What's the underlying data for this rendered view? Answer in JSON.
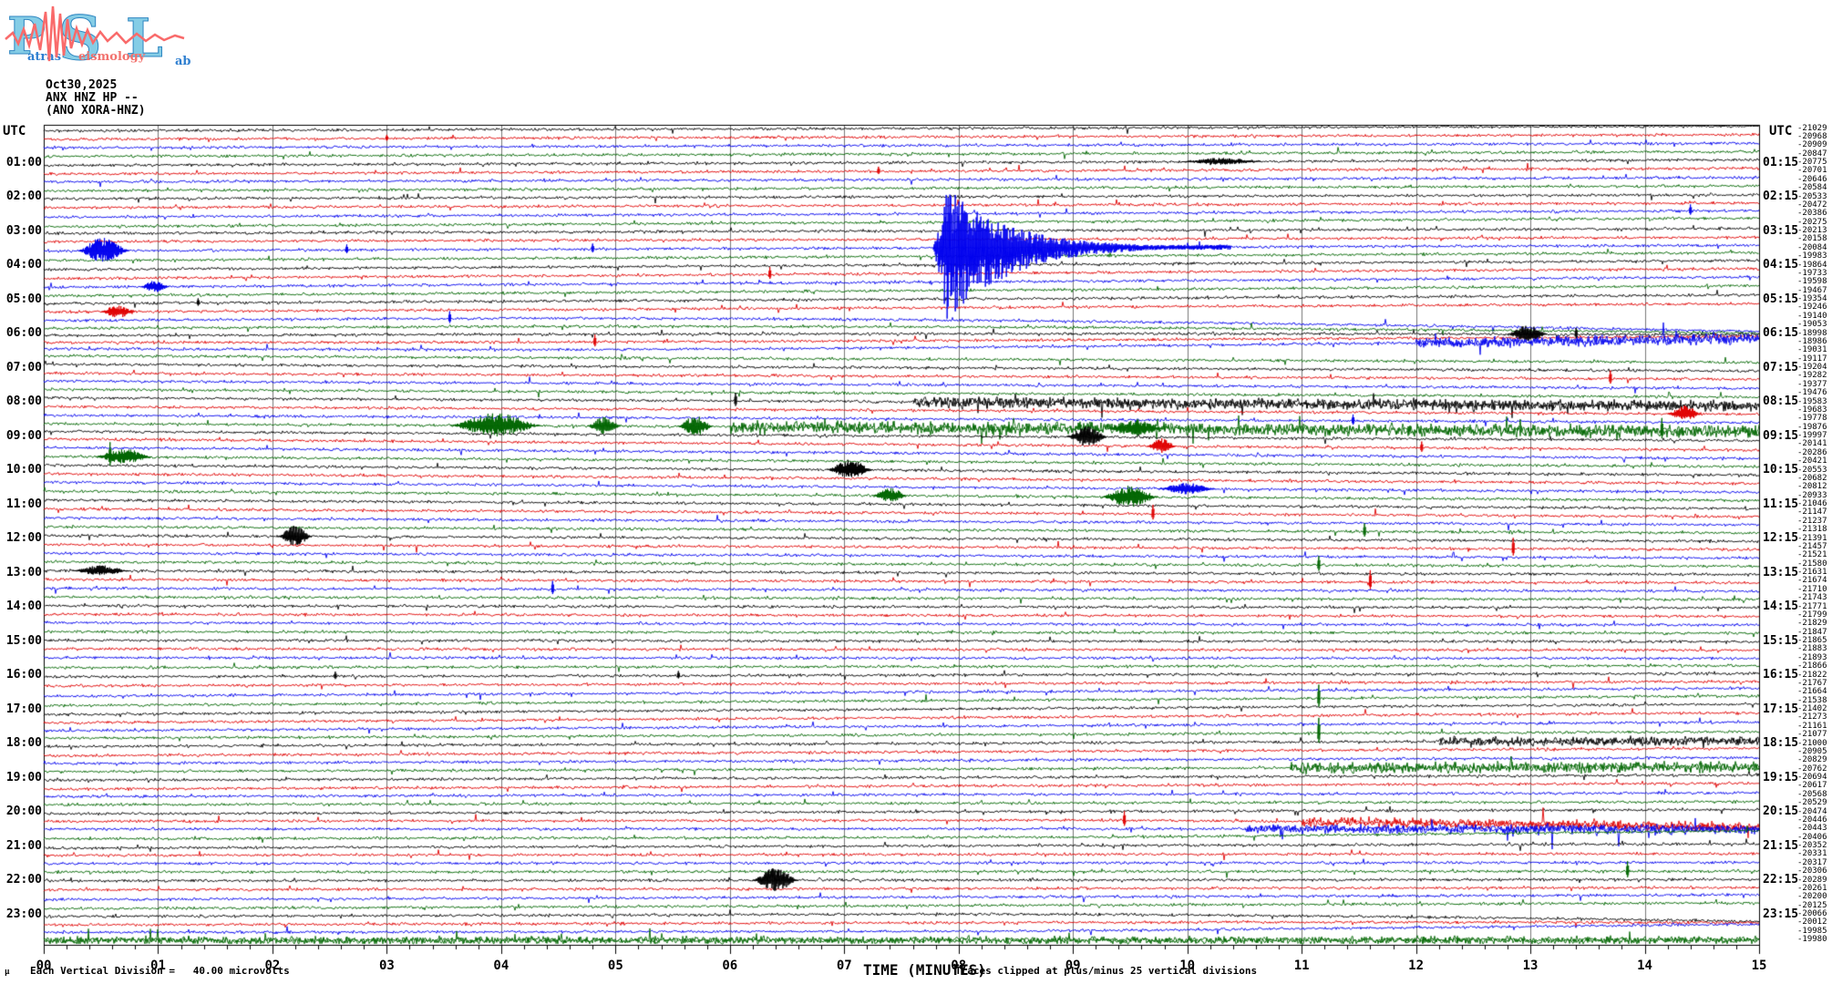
{
  "logo": {
    "letters": [
      "P",
      "S",
      "L"
    ],
    "words": [
      "atras",
      "eismology",
      "ab"
    ],
    "letter_fill": "#85cde6",
    "letter_stroke": "#2e86c1",
    "wave_color": "#f96a6a",
    "word_color_blue": "#2f7fd0",
    "word_color_red": "#f2716d"
  },
  "header": {
    "date": "Oct30,2025",
    "station": "ANX HNZ HP --",
    "station_alt": "(ANO XORA-HNZ)"
  },
  "axes": {
    "utc_left": "UTC",
    "utc_right": "UTC",
    "x_label": "TIME (MINUTES)",
    "clip_note": "Traces clipped at plus/minus 25 vertical divisions",
    "scale_note": "Each Vertical Division =   40.00 microvolts",
    "mu_glyph": "µ",
    "x_ticks": [
      "00",
      "01",
      "02",
      "03",
      "04",
      "05",
      "06",
      "07",
      "08",
      "09",
      "10",
      "11",
      "12",
      "13",
      "14",
      "15"
    ]
  },
  "chart_data": {
    "type": "line",
    "variant": "helicorder-seismogram",
    "start_time": "00:00",
    "minutes_per_line": 15,
    "lines": 96,
    "x_range": [
      0,
      15
    ],
    "grid": "vertical gridline each minute, 4 minor ticks per minute on bottom axis",
    "trace_colors": [
      "#000000",
      "#e00000",
      "#0000ee",
      "#006600"
    ],
    "left_time_labels": [
      "01:00",
      "02:00",
      "03:00",
      "04:00",
      "05:00",
      "06:00",
      "07:00",
      "08:00",
      "09:00",
      "10:00",
      "11:00",
      "12:00",
      "13:00",
      "14:00",
      "15:00",
      "16:00",
      "17:00",
      "18:00",
      "19:00",
      "20:00",
      "21:00",
      "22:00",
      "23:00"
    ],
    "right_time_labels": [
      "01:15",
      "02:15",
      "03:15",
      "04:15",
      "05:15",
      "06:15",
      "07:15",
      "08:15",
      "09:15",
      "10:15",
      "11:15",
      "12:15",
      "13:15",
      "14:15",
      "15:15",
      "16:15",
      "17:15",
      "18:15",
      "19:15",
      "20:15",
      "21:15",
      "22:15",
      "23:15"
    ],
    "right_edge_values": [
      -21029,
      -20968,
      -20909,
      -20847,
      -20775,
      -20701,
      -20646,
      -20584,
      -20533,
      -20472,
      -20386,
      -20275,
      -20213,
      -20158,
      -20084,
      -19983,
      -19864,
      -19733,
      -19598,
      -19467,
      -19354,
      -19246,
      -19140,
      -19053,
      -18998,
      -18986,
      -19031,
      -19117,
      -19204,
      -19282,
      -19377,
      -19476,
      -19583,
      -19683,
      -19778,
      -19876,
      -19997,
      -20141,
      -20286,
      -20421,
      -20553,
      -20682,
      -20812,
      -20933,
      -21046,
      -21147,
      -21237,
      -21318,
      -21391,
      -21457,
      -21521,
      -21580,
      -21631,
      -21674,
      -21710,
      -21743,
      -21771,
      -21799,
      -21829,
      -21847,
      -21865,
      -21883,
      -21893,
      -21866,
      -21822,
      -21767,
      -21664,
      -21538,
      -21402,
      -21273,
      -21161,
      -21077,
      -21000,
      -20905,
      -20829,
      -20762,
      -20694,
      -20617,
      -20568,
      -20529,
      -20474,
      -20446,
      -20443,
      -20406,
      -20352,
      -20331,
      -20317,
      -20306,
      -20289,
      -20261,
      -20200,
      -20125,
      -20066,
      -20012,
      -19985,
      -19980
    ],
    "events": [
      {
        "r": 1,
        "k": "spike",
        "m": 3.0,
        "a": 4
      },
      {
        "r": 4,
        "k": "burst",
        "m": 9.95,
        "d": 0.7,
        "a": 4
      },
      {
        "r": 5,
        "k": "spike",
        "m": 7.3,
        "a": 5
      },
      {
        "r": 10,
        "k": "spike",
        "m": 14.4,
        "a": 7
      },
      {
        "r": 14,
        "k": "burst",
        "m": 0.3,
        "d": 0.45,
        "a": 15
      },
      {
        "r": 14,
        "k": "spike",
        "m": 2.65,
        "a": 6
      },
      {
        "r": 14,
        "k": "spike",
        "m": 4.8,
        "a": 6
      },
      {
        "r": 14,
        "k": "quake",
        "m": 7.78,
        "d": 2.6,
        "a": 66
      },
      {
        "r": 17,
        "k": "spike",
        "m": 6.35,
        "a": 8
      },
      {
        "r": 18,
        "k": "burst",
        "m": 0.85,
        "d": 0.25,
        "a": 7
      },
      {
        "r": 20,
        "k": "spike",
        "m": 1.35,
        "a": 5
      },
      {
        "r": 21,
        "k": "burst",
        "m": 0.5,
        "d": 0.3,
        "a": 8
      },
      {
        "r": 22,
        "k": "spike",
        "m": 3.55,
        "a": 8
      },
      {
        "r": 24,
        "k": "burst",
        "m": 12.8,
        "d": 0.35,
        "a": 10
      },
      {
        "r": 24,
        "k": "spike",
        "m": 13.4,
        "a": 7
      },
      {
        "r": 25,
        "k": "spike",
        "m": 4.82,
        "a": 8
      },
      {
        "r": 26,
        "k": "dense",
        "m": 12.0,
        "d": 3.0,
        "a": 2.5
      },
      {
        "r": 29,
        "k": "spike",
        "m": 13.7,
        "a": 9
      },
      {
        "r": 32,
        "k": "spike",
        "m": 6.05,
        "a": 9
      },
      {
        "r": 32,
        "k": "dense",
        "m": 7.6,
        "d": 7.4,
        "a": 2.5
      },
      {
        "r": 33,
        "k": "burst",
        "m": 14.2,
        "d": 0.3,
        "a": 9
      },
      {
        "r": 34,
        "k": "spike",
        "m": 11.45,
        "a": 7
      },
      {
        "r": 35,
        "k": "burst",
        "m": 3.55,
        "d": 0.8,
        "a": 14
      },
      {
        "r": 35,
        "k": "burst",
        "m": 4.75,
        "d": 0.3,
        "a": 10
      },
      {
        "r": 35,
        "k": "burst",
        "m": 5.55,
        "d": 0.3,
        "a": 12
      },
      {
        "r": 35,
        "k": "dense",
        "m": 6.0,
        "d": 9.0,
        "a": 3
      },
      {
        "r": 35,
        "k": "burst",
        "m": 9.3,
        "d": 0.5,
        "a": 10
      },
      {
        "r": 35,
        "k": "spike",
        "m": 14.15,
        "a": 14
      },
      {
        "r": 36,
        "k": "burst",
        "m": 8.95,
        "d": 0.35,
        "a": 12
      },
      {
        "r": 37,
        "k": "burst",
        "m": 9.65,
        "d": 0.25,
        "a": 9
      },
      {
        "r": 37,
        "k": "spike",
        "m": 12.05,
        "a": 7
      },
      {
        "r": 39,
        "k": "burst",
        "m": 0.45,
        "d": 0.5,
        "a": 9
      },
      {
        "r": 39,
        "k": "spike",
        "m": 0.58,
        "a": 16
      },
      {
        "r": 40,
        "k": "burst",
        "m": 6.85,
        "d": 0.4,
        "a": 11
      },
      {
        "r": 42,
        "k": "burst",
        "m": 9.75,
        "d": 0.5,
        "a": 7
      },
      {
        "r": 43,
        "k": "burst",
        "m": 7.25,
        "d": 0.3,
        "a": 9
      },
      {
        "r": 43,
        "k": "burst",
        "m": 9.25,
        "d": 0.5,
        "a": 13
      },
      {
        "r": 45,
        "k": "spike",
        "m": 9.7,
        "a": 10
      },
      {
        "r": 47,
        "k": "spike",
        "m": 11.55,
        "a": 9
      },
      {
        "r": 48,
        "k": "burst",
        "m": 2.05,
        "d": 0.3,
        "a": 12
      },
      {
        "r": 49,
        "k": "spike",
        "m": 12.85,
        "a": 12
      },
      {
        "r": 51,
        "k": "spike",
        "m": 11.15,
        "a": 10
      },
      {
        "r": 52,
        "k": "burst",
        "m": 0.25,
        "d": 0.5,
        "a": 6
      },
      {
        "r": 53,
        "k": "spike",
        "m": 11.6,
        "a": 13
      },
      {
        "r": 54,
        "k": "spike",
        "m": 4.45,
        "a": 9
      },
      {
        "r": 64,
        "k": "spike",
        "m": 2.55,
        "a": 5
      },
      {
        "r": 64,
        "k": "spike",
        "m": 5.55,
        "a": 5
      },
      {
        "r": 67,
        "k": "spike",
        "m": 11.15,
        "a": 15
      },
      {
        "r": 71,
        "k": "spike",
        "m": 11.15,
        "a": 17
      },
      {
        "r": 72,
        "k": "dense",
        "m": 12.2,
        "d": 2.8,
        "a": 2
      },
      {
        "r": 75,
        "k": "dense",
        "m": 10.9,
        "d": 4.1,
        "a": 2.5
      },
      {
        "r": 81,
        "k": "spike",
        "m": 9.45,
        "a": 10
      },
      {
        "r": 81,
        "k": "dense",
        "m": 11.0,
        "d": 4.0,
        "a": 2
      },
      {
        "r": 82,
        "k": "dense",
        "m": 10.5,
        "d": 4.5,
        "a": 2
      },
      {
        "r": 87,
        "k": "spike",
        "m": 13.85,
        "a": 11
      },
      {
        "r": 88,
        "k": "burst",
        "m": 6.2,
        "d": 0.4,
        "a": 14
      },
      {
        "r": 95,
        "k": "dense",
        "m": 0,
        "d": 15,
        "a": 1.5
      }
    ],
    "converge": [
      {
        "rows": [
          22,
          26
        ],
        "center": 24.2,
        "spread": 1.8,
        "from": 4
      },
      {
        "rows": [
          81,
          83
        ],
        "center": 82,
        "spread": 2,
        "from": 9
      },
      {
        "rows": [
          92,
          94
        ],
        "center": 93,
        "spread": 1.5,
        "from": 8
      }
    ]
  }
}
